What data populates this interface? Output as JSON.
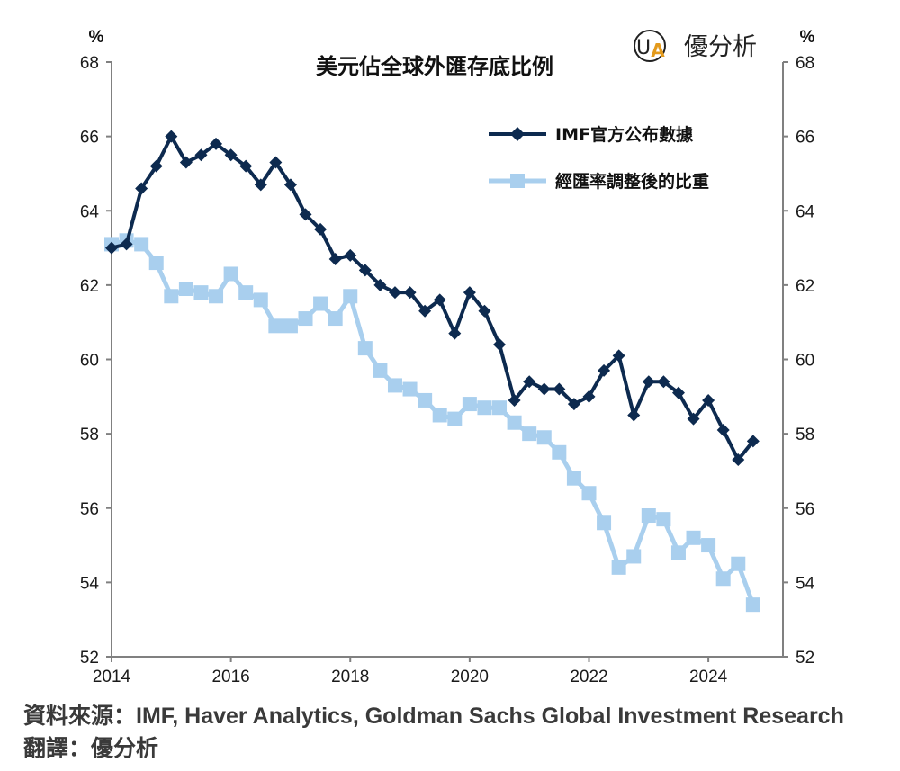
{
  "logo": {
    "text": "優分析",
    "mark": "UA"
  },
  "footer": {
    "source": "資料來源：IMF, Haver Analytics, Goldman Sachs Global Investment Research",
    "translator": "翻譯：優分析"
  },
  "chart_data": {
    "type": "line",
    "title": "美元佔全球外匯存底比例",
    "y_unit_left": "%",
    "y_unit_right": "%",
    "ylim": [
      52,
      68
    ],
    "yticks": [
      52,
      54,
      56,
      58,
      60,
      62,
      64,
      66,
      68
    ],
    "xlim": [
      2014,
      2025.25
    ],
    "xticks": [
      2014,
      2016,
      2018,
      2020,
      2022,
      2024
    ],
    "grid": false,
    "legend_position": "top-right",
    "colors": {
      "series1": "#0d2a4f",
      "series2": "#a9cfee",
      "axis": "#808080"
    },
    "series": [
      {
        "name": "IMF官方公布數據",
        "marker": "diamond",
        "x": [
          2014.0,
          2014.25,
          2014.5,
          2014.75,
          2015.0,
          2015.25,
          2015.5,
          2015.75,
          2016.0,
          2016.25,
          2016.5,
          2016.75,
          2017.0,
          2017.25,
          2017.5,
          2017.75,
          2018.0,
          2018.25,
          2018.5,
          2018.75,
          2019.0,
          2019.25,
          2019.5,
          2019.75,
          2020.0,
          2020.25,
          2020.5,
          2020.75,
          2021.0,
          2021.25,
          2021.5,
          2021.75,
          2022.0,
          2022.25,
          2022.5,
          2022.75,
          2023.0,
          2023.25,
          2023.5,
          2023.75,
          2024.0,
          2024.25,
          2024.5,
          2024.75
        ],
        "values": [
          63.0,
          63.1,
          64.6,
          65.2,
          66.0,
          65.3,
          65.5,
          65.8,
          65.5,
          65.2,
          64.7,
          65.3,
          64.7,
          63.9,
          63.5,
          62.7,
          62.8,
          62.4,
          62.0,
          61.8,
          61.8,
          61.3,
          61.6,
          60.7,
          61.8,
          61.3,
          60.4,
          58.9,
          59.4,
          59.2,
          59.2,
          58.8,
          59.0,
          59.7,
          60.1,
          58.5,
          59.4,
          59.4,
          59.1,
          58.4,
          58.9,
          58.1,
          57.3,
          57.8
        ]
      },
      {
        "name": "經匯率調整後的比重",
        "marker": "square",
        "x": [
          2014.0,
          2014.25,
          2014.5,
          2014.75,
          2015.0,
          2015.25,
          2015.5,
          2015.75,
          2016.0,
          2016.25,
          2016.5,
          2016.75,
          2017.0,
          2017.25,
          2017.5,
          2017.75,
          2018.0,
          2018.25,
          2018.5,
          2018.75,
          2019.0,
          2019.25,
          2019.5,
          2019.75,
          2020.0,
          2020.25,
          2020.5,
          2020.75,
          2021.0,
          2021.25,
          2021.5,
          2021.75,
          2022.0,
          2022.25,
          2022.5,
          2022.75,
          2023.0,
          2023.25,
          2023.5,
          2023.75,
          2024.0,
          2024.25,
          2024.5,
          2024.75
        ],
        "values": [
          63.1,
          63.2,
          63.1,
          62.6,
          61.7,
          61.9,
          61.8,
          61.7,
          62.3,
          61.8,
          61.6,
          60.9,
          60.9,
          61.1,
          61.5,
          61.1,
          61.7,
          60.3,
          59.7,
          59.3,
          59.2,
          58.9,
          58.5,
          58.4,
          58.8,
          58.7,
          58.7,
          58.3,
          58.0,
          57.9,
          57.5,
          56.8,
          56.4,
          55.6,
          54.4,
          54.7,
          55.8,
          55.7,
          54.8,
          55.2,
          55.0,
          54.1,
          54.5,
          53.4
        ]
      }
    ]
  }
}
